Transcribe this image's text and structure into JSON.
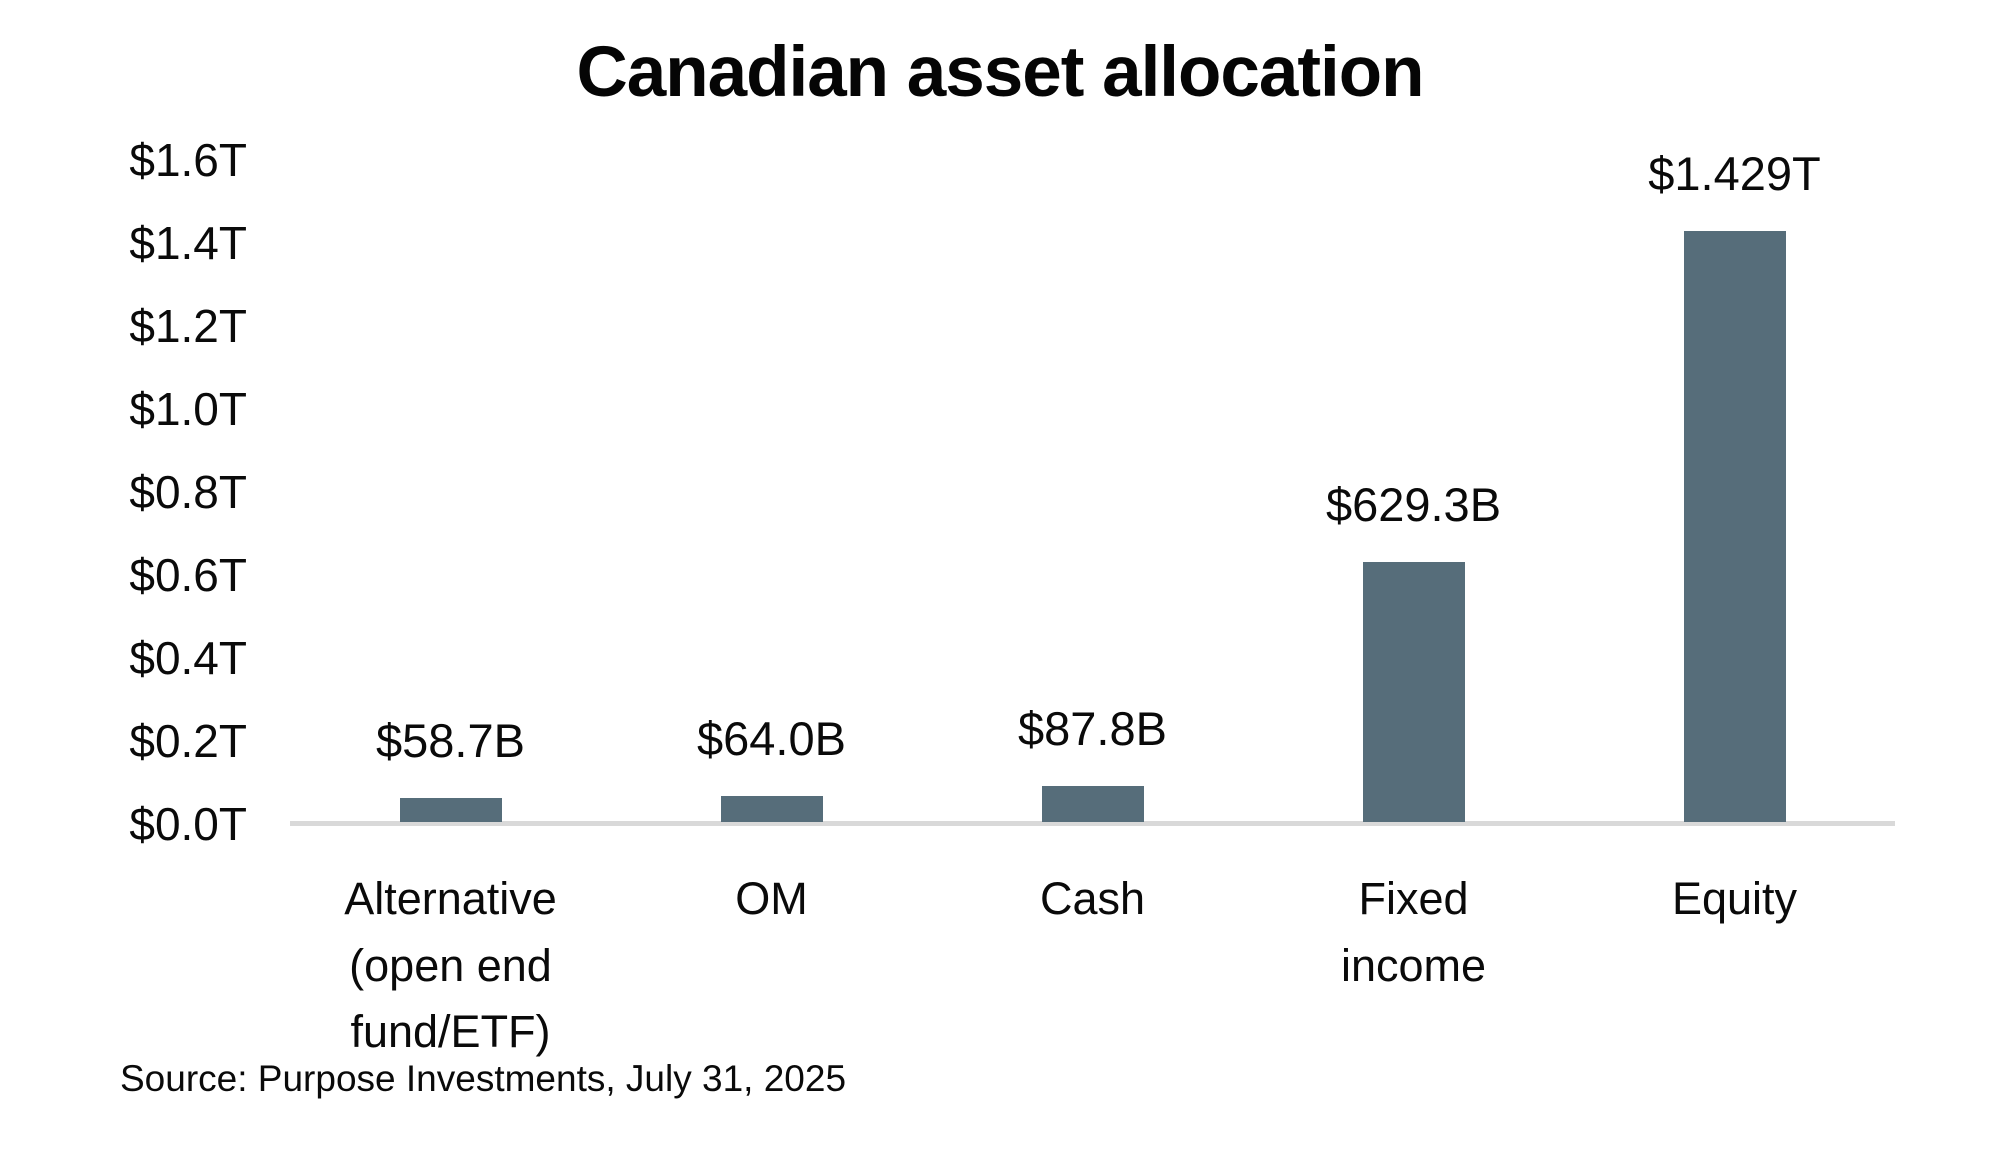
{
  "page": {
    "background": "#ffffff",
    "text_color": "#0a0a0a"
  },
  "chart_data": {
    "type": "bar",
    "title": "Canadian asset allocation",
    "categories": [
      "Alternative (open end fund/ETF)",
      "OM",
      "Cash",
      "Fixed income",
      "Equity"
    ],
    "values_billions": [
      58.7,
      64.0,
      87.8,
      629.3,
      1429
    ],
    "bar_labels": [
      "$58.7B",
      "$64.0B",
      "$87.8B",
      "$629.3B",
      "$1.429T"
    ],
    "y_ticks": [
      "$1.6T",
      "$1.4T",
      "$1.2T",
      "$1.0T",
      "$0.8T",
      "$0.6T",
      "$0.4T",
      "$0.2T",
      "$0.0T"
    ],
    "ylim_trillions": [
      0,
      1.6
    ],
    "ylabel": "",
    "xlabel": "",
    "grid": false,
    "legend": false,
    "bar_color": "#566d7a",
    "axis_line_color": "#d9d9d9",
    "source": "Source: Purpose Investments, July 31, 2025"
  }
}
